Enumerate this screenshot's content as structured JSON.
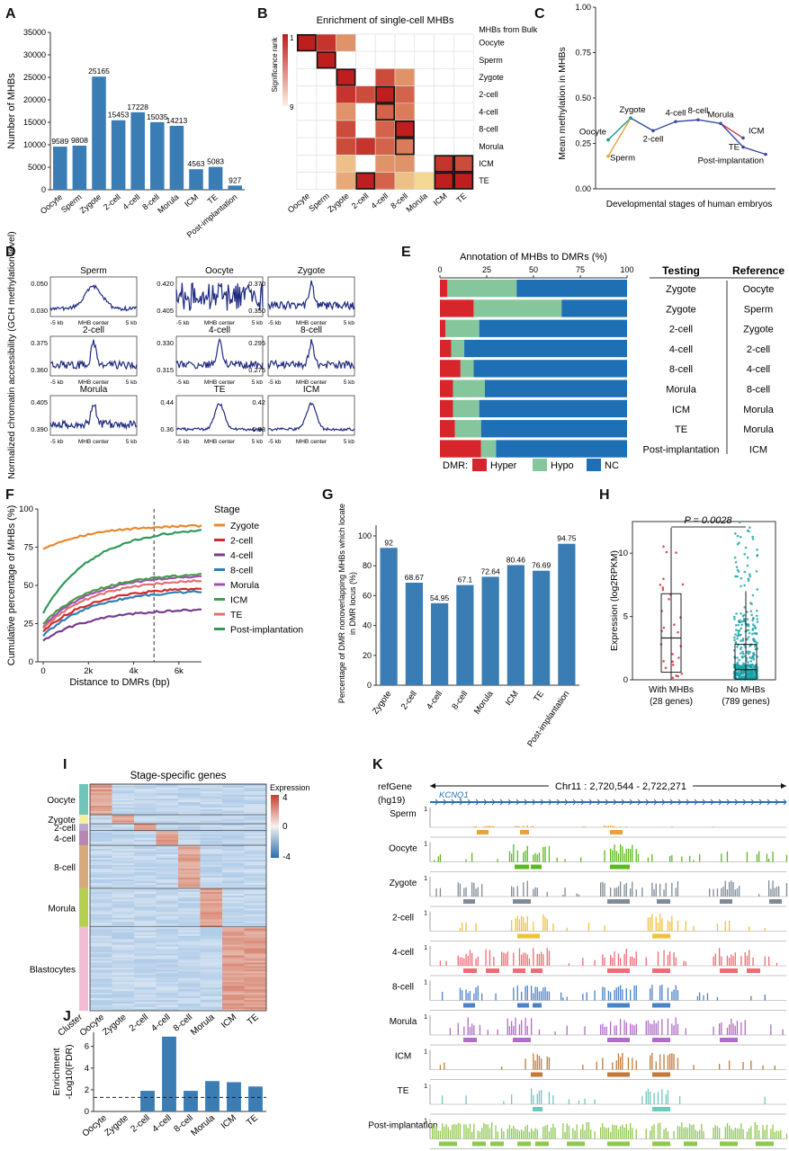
{
  "panels": {
    "A": {
      "letter": "A"
    },
    "B": {
      "letter": "B"
    },
    "C": {
      "letter": "C"
    },
    "D": {
      "letter": "D"
    },
    "E": {
      "letter": "E"
    },
    "F": {
      "letter": "F"
    },
    "G": {
      "letter": "G"
    },
    "H": {
      "letter": "H"
    },
    "I": {
      "letter": "I"
    },
    "J": {
      "letter": "J"
    },
    "K": {
      "letter": "K"
    }
  },
  "chart_data": [
    {
      "panel": "A",
      "type": "bar",
      "categories": [
        "Oocyte",
        "Sperm",
        "Zygote",
        "2-cell",
        "4-cell",
        "8-cell",
        "Morula",
        "ICM",
        "TE",
        "Post-implantation"
      ],
      "values": [
        9589,
        9808,
        25165,
        15453,
        17228,
        15035,
        14213,
        4563,
        5083,
        927
      ],
      "ylabel": "Number of MHBs",
      "ylim": [
        0,
        35000
      ],
      "yticks": [
        0,
        5000,
        10000,
        15000,
        20000,
        25000,
        30000,
        35000
      ],
      "color": "#3a7db5"
    },
    {
      "panel": "B",
      "type": "heatmap",
      "title": "Enrichment of single-cell MHBs",
      "legend_label": "Significance rank",
      "legend_ticks": [
        "1",
        "9"
      ],
      "rows_label": "MHBs from Bulk",
      "rows": [
        "Oocyte",
        "Sperm",
        "Zygote",
        "2-cell",
        "4-cell",
        "8-cell",
        "Morula",
        "ICM",
        "TE"
      ],
      "cols": [
        "Oocyte",
        "Sperm",
        "Zygote",
        "2-cell",
        "4-cell",
        "8-cell",
        "Morula",
        "ICM",
        "TE"
      ],
      "ranks": [
        [
          1,
          2,
          6,
          10,
          10,
          10,
          10,
          10,
          10
        ],
        [
          10,
          1,
          10,
          10,
          10,
          10,
          10,
          10,
          10
        ],
        [
          10,
          10,
          1,
          10,
          3,
          6,
          10,
          10,
          10
        ],
        [
          10,
          10,
          2,
          3,
          1,
          4,
          10,
          10,
          10
        ],
        [
          10,
          10,
          6,
          10,
          4,
          5,
          10,
          10,
          10
        ],
        [
          10,
          10,
          3,
          10,
          4,
          1,
          10,
          10,
          10
        ],
        [
          10,
          10,
          3,
          2,
          4,
          5,
          10,
          10,
          10
        ],
        [
          10,
          10,
          8,
          10,
          6,
          6,
          10,
          2,
          3
        ],
        [
          10,
          10,
          7,
          1,
          4,
          8,
          9,
          1,
          1
        ]
      ],
      "boxed": [
        [
          0,
          0
        ],
        [
          1,
          1
        ],
        [
          2,
          2
        ],
        [
          3,
          4
        ],
        [
          4,
          4
        ],
        [
          5,
          5
        ],
        [
          6,
          5
        ],
        [
          7,
          7
        ],
        [
          7,
          8
        ],
        [
          8,
          3
        ],
        [
          8,
          7
        ],
        [
          8,
          8
        ]
      ]
    },
    {
      "panel": "C",
      "type": "line",
      "xlabel": "Developmental stages of human embryos",
      "ylabel": "Mean methylation in MHBs",
      "ylim": [
        0,
        1
      ],
      "yticks": [
        "0.00",
        "0.25",
        "0.50",
        "0.75",
        "1.00"
      ],
      "points": [
        {
          "label": "Oocyte",
          "x": 0,
          "y": 0.27,
          "color": "#1a9a8a"
        },
        {
          "label": "Sperm",
          "x": 0,
          "y": 0.18,
          "color": "#e8a13a"
        },
        {
          "label": "Zygote",
          "x": 1,
          "y": 0.39,
          "color": "#1a9a8a"
        },
        {
          "label": "2-cell",
          "x": 2,
          "y": 0.32,
          "color": "#3a4aa0"
        },
        {
          "label": "4-cell",
          "x": 3,
          "y": 0.37,
          "color": "#3a4aa0"
        },
        {
          "label": "8-cell",
          "x": 4,
          "y": 0.38,
          "color": "#3a4aa0"
        },
        {
          "label": "Morula",
          "x": 5,
          "y": 0.36,
          "color": "#3a4aa0"
        },
        {
          "label": "ICM",
          "x": 6,
          "y": 0.28,
          "color": "#3a4aa0"
        },
        {
          "label": "TE",
          "x": 6,
          "y": 0.23,
          "color": "#3a4aa0"
        },
        {
          "label": "Post-implantation",
          "x": 7,
          "y": 0.19,
          "color": "#3a4aa0"
        }
      ]
    },
    {
      "panel": "D",
      "type": "line",
      "ylabel": "Normalized chromatin accessibility (GCH methylation level)",
      "x_left": "-5 kb",
      "x_center": "MHB center",
      "x_right": "5 kb",
      "subplots": [
        {
          "title": "Sperm",
          "yticks": [
            "0.050",
            "0.030"
          ],
          "shape": "dip"
        },
        {
          "title": "Oocyte",
          "yticks": [
            "0.420",
            "0.405"
          ],
          "shape": "noisy"
        },
        {
          "title": "Zygote",
          "yticks": [
            "0.370",
            "0.350"
          ],
          "shape": "peak"
        },
        {
          "title": "2-cell",
          "yticks": [
            "0.375",
            "0.360"
          ],
          "shape": "peak"
        },
        {
          "title": "4-cell",
          "yticks": [
            "0.330",
            "0.315"
          ],
          "shape": "peak"
        },
        {
          "title": "8-cell",
          "yticks": [
            "0.295",
            "0.275"
          ],
          "shape": "peak"
        },
        {
          "title": "Morula",
          "yticks": [
            "0.405",
            "0.390"
          ],
          "shape": "peak"
        },
        {
          "title": "TE",
          "yticks": [
            "0.44",
            "0.36"
          ],
          "shape": "broad"
        },
        {
          "title": "ICM",
          "yticks": [
            "0.42",
            "0.38"
          ],
          "shape": "broad"
        }
      ],
      "color": "#1f2a80"
    },
    {
      "panel": "E",
      "type": "bar",
      "title": "Annotation of MHBs to DMRs (%)",
      "xticks": [
        "0",
        "25",
        "50",
        "75",
        "100"
      ],
      "testing_header": "Testing",
      "reference_header": "Reference",
      "rows": [
        {
          "testing": "Zygote",
          "reference": "Oocyte",
          "hyper": 4,
          "hypo": 37,
          "nc": 59
        },
        {
          "testing": "Zygote",
          "reference": "Sperm",
          "hyper": 18,
          "hypo": 47,
          "nc": 35
        },
        {
          "testing": "2-cell",
          "reference": "Zygote",
          "hyper": 3,
          "hypo": 18,
          "nc": 79
        },
        {
          "testing": "4-cell",
          "reference": "2-cell",
          "hyper": 6,
          "hypo": 7,
          "nc": 87
        },
        {
          "testing": "8-cell",
          "reference": "4-cell",
          "hyper": 11,
          "hypo": 7,
          "nc": 82
        },
        {
          "testing": "Morula",
          "reference": "8-cell",
          "hyper": 7,
          "hypo": 17,
          "nc": 76
        },
        {
          "testing": "ICM",
          "reference": "Morula",
          "hyper": 7,
          "hypo": 14,
          "nc": 79
        },
        {
          "testing": "TE",
          "reference": "Morula",
          "hyper": 8,
          "hypo": 14,
          "nc": 78
        },
        {
          "testing": "Post-implantation",
          "reference": "ICM",
          "hyper": 22,
          "hypo": 8,
          "nc": 70
        }
      ],
      "legend_title": "DMR:",
      "legend": [
        {
          "name": "Hyper",
          "color": "#d7262b"
        },
        {
          "name": "Hypo",
          "color": "#86c69c"
        },
        {
          "name": "NC",
          "color": "#1f6fb5"
        }
      ]
    },
    {
      "panel": "F",
      "type": "line",
      "xlabel": "Distance to DMRs (bp)",
      "ylabel": "Cumulative percentage of MHBs (%)",
      "xticks": [
        "0",
        "2k",
        "4k",
        "6k"
      ],
      "yticks": [
        "0",
        "25",
        "50",
        "75",
        "100"
      ],
      "ylim": [
        0,
        100
      ],
      "xlim": [
        0,
        7000
      ],
      "vline": 4900,
      "legend_title": "Stage",
      "series": [
        {
          "name": "Zygote",
          "color": "#e9882b",
          "start": 74,
          "end": 89
        },
        {
          "name": "2-cell",
          "color": "#d12a2a",
          "start": 20,
          "end": 48
        },
        {
          "name": "4-cell",
          "color": "#7a3b8f",
          "start": 14,
          "end": 34
        },
        {
          "name": "8-cell",
          "color": "#2f7fb3",
          "start": 17,
          "end": 46
        },
        {
          "name": "Morula",
          "color": "#a04fb5",
          "start": 23,
          "end": 56
        },
        {
          "name": "ICM",
          "color": "#4a9c4a",
          "start": 25,
          "end": 57
        },
        {
          "name": "TE",
          "color": "#e07070",
          "start": 22,
          "end": 53
        },
        {
          "name": "Post-implantation",
          "color": "#2f9a5a",
          "start": 32,
          "end": 86
        }
      ]
    },
    {
      "panel": "G",
      "type": "bar",
      "ylabel": "Percentage of DMR nonoverlapping MHBs which locate in DMR locus (%)",
      "categories": [
        "Zygote",
        "2-cell",
        "4-cell",
        "8-cell",
        "Morula",
        "ICM",
        "TE",
        "Post-implantation"
      ],
      "values": [
        92,
        68.67,
        54.95,
        67.1,
        72.64,
        80.46,
        76.69,
        94.75
      ],
      "value_labels": [
        "92",
        "68.67",
        "54.95",
        "67.1",
        "72.64",
        "80.46",
        "76.69",
        "94.75"
      ],
      "ylim": [
        0,
        100
      ],
      "yticks": [
        "0",
        "20",
        "40",
        "60",
        "80",
        "100"
      ],
      "color": "#3a7db5"
    },
    {
      "panel": "H",
      "type": "scatter",
      "ylabel": "Expression (log2RPKM)",
      "pvalue": "P = 0.0028",
      "yticks": [
        "0",
        "5",
        "10"
      ],
      "ylim": [
        0,
        12.5
      ],
      "groups": [
        {
          "name": "With MHBs",
          "count": "(28 genes)",
          "color": "#d7262b",
          "q1": 0.6,
          "median": 3.3,
          "q3": 6.8,
          "whisker_low": 0,
          "whisker_high": 12
        },
        {
          "name": "No MHBs",
          "count": "(789 genes)",
          "color": "#1aa0a8",
          "q1": 0.05,
          "median": 0.8,
          "q3": 2.8,
          "whisker_low": 0,
          "whisker_high": 7
        }
      ]
    },
    {
      "panel": "I",
      "type": "heatmap",
      "title": "Stage-specific genes",
      "legend_title": "Expression",
      "legend_ticks": [
        "4",
        "0",
        "-4"
      ],
      "cols": [
        "Oocyte",
        "Zygote",
        "2-cell",
        "4-cell",
        "8-cell",
        "Morula",
        "ICM",
        "TE"
      ],
      "cluster_label": "Cluster",
      "clusters": [
        {
          "name": "Oocyte",
          "color": "#6fc5b8",
          "frac": 0.135,
          "hi": [
            0
          ]
        },
        {
          "name": "Zygote",
          "color": "#f5f0a0",
          "frac": 0.04,
          "hi": [
            1
          ]
        },
        {
          "name": "2-cell",
          "color": "#b8a6cf",
          "frac": 0.03,
          "hi": [
            2
          ]
        },
        {
          "name": "4-cell",
          "color": "#b886b3",
          "frac": 0.065,
          "hi": [
            3
          ]
        },
        {
          "name": "8-cell",
          "color": "#d6aa7a",
          "frac": 0.19,
          "hi": [
            4
          ]
        },
        {
          "name": "Morula",
          "color": "#b5cf52",
          "frac": 0.17,
          "hi": [
            5
          ]
        },
        {
          "name": "Blastocytes",
          "color": "#f3bcd6",
          "frac": 0.37,
          "hi": [
            6,
            7
          ]
        }
      ]
    },
    {
      "panel": "J",
      "type": "bar",
      "ylabel": "Enrichment -Log10(FDR)",
      "categories": [
        "Oocyte",
        "Zygote",
        "2-cell",
        "4-cell",
        "8-cell",
        "Morula",
        "ICM",
        "TE"
      ],
      "values": [
        0,
        0,
        1.9,
        6.9,
        1.9,
        2.8,
        2.7,
        2.3
      ],
      "ylim": [
        0,
        7.3
      ],
      "yticks": [
        "0",
        "2",
        "4",
        "6"
      ],
      "threshold": 1.3,
      "color": "#3a7db5"
    },
    {
      "panel": "K",
      "type": "bar",
      "ref_label": "refGene",
      "genome": "(hg19)",
      "gene": "KCNQ1",
      "region": "Chr11 : 2,720,544 - 2,722,271",
      "tracks": [
        {
          "name": "Sperm",
          "color": "#e9a23b"
        },
        {
          "name": "Oocyte",
          "color": "#5cb81f"
        },
        {
          "name": "Zygote",
          "color": "#7f8a96"
        },
        {
          "name": "2-cell",
          "color": "#f0c23a"
        },
        {
          "name": "4-cell",
          "color": "#ef6b75"
        },
        {
          "name": "8-cell",
          "color": "#4a82c8"
        },
        {
          "name": "Morula",
          "color": "#b06cc6"
        },
        {
          "name": "ICM",
          "color": "#c07a3a"
        },
        {
          "name": "TE",
          "color": "#6fc9bf"
        },
        {
          "name": "Post-implantation",
          "color": "#8fc84f"
        }
      ],
      "track_scale": "1",
      "icr_label": "ICR",
      "icr_color": "#d7262b"
    }
  ]
}
